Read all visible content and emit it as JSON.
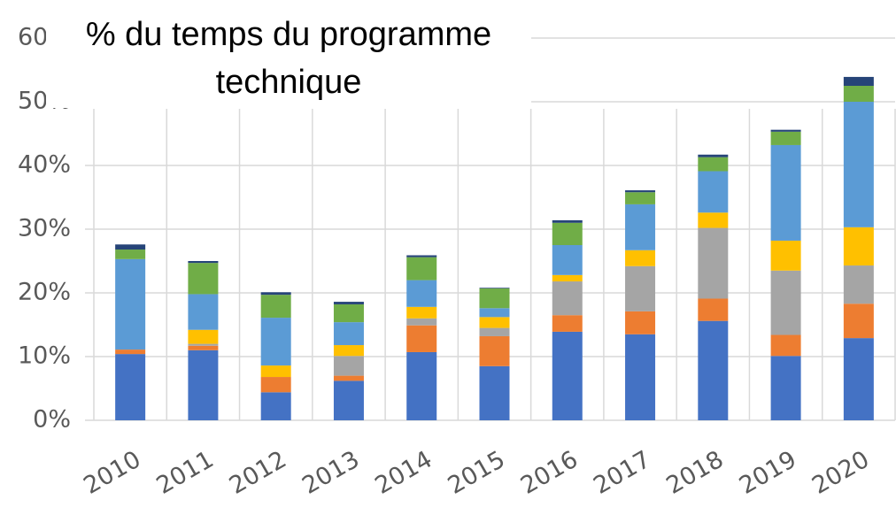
{
  "chart_data": {
    "type": "stacked_bar",
    "title": "% du temps du programme technique",
    "categories": [
      "2010",
      "2011",
      "2012",
      "2013",
      "2014",
      "2015",
      "2016",
      "2017",
      "2018",
      "2019",
      "2020"
    ],
    "series": [
      {
        "color": "#4472c4",
        "values": [
          10.4,
          11.0,
          4.4,
          6.2,
          10.7,
          8.5,
          13.9,
          13.5,
          15.6,
          10.1,
          12.9
        ]
      },
      {
        "color": "#ed7d31",
        "values": [
          0.7,
          0.7,
          2.4,
          0.8,
          4.2,
          4.7,
          2.6,
          3.6,
          3.5,
          3.3,
          5.4
        ]
      },
      {
        "color": "#a5a5a5",
        "values": [
          0,
          0.3,
          0,
          3.1,
          1.1,
          1.3,
          5.3,
          7.1,
          11.1,
          10.1,
          6.0
        ]
      },
      {
        "color": "#ffc000",
        "values": [
          0,
          2.2,
          1.8,
          1.7,
          1.8,
          1.7,
          1.0,
          2.5,
          2.4,
          4.7,
          6.0
        ]
      },
      {
        "color": "#5b9bd5",
        "values": [
          14.2,
          5.6,
          7.5,
          3.6,
          4.2,
          1.4,
          4.7,
          7.2,
          6.5,
          15.0,
          19.7
        ]
      },
      {
        "color": "#70ad47",
        "values": [
          1.5,
          4.9,
          3.6,
          2.8,
          3.6,
          3.1,
          3.5,
          1.9,
          2.2,
          2.1,
          2.5
        ]
      },
      {
        "color": "#264478",
        "values": [
          0.8,
          0.3,
          0.4,
          0.4,
          0.3,
          0.1,
          0.4,
          0.3,
          0.4,
          0.3,
          1.4
        ]
      }
    ],
    "ylim": [
      0,
      60
    ],
    "yticks": [
      {
        "value": 0,
        "label": "0%"
      },
      {
        "value": 10,
        "label": "10%"
      },
      {
        "value": 20,
        "label": "20%"
      },
      {
        "value": 30,
        "label": "30%"
      },
      {
        "value": 40,
        "label": "40%"
      },
      {
        "value": 50,
        "label": "50%"
      },
      {
        "value": 60,
        "label": "60%"
      }
    ],
    "grid": true
  }
}
